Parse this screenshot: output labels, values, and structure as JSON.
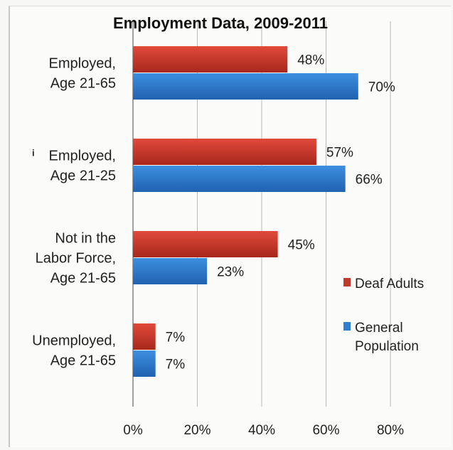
{
  "chart_data": {
    "type": "bar",
    "orientation": "horizontal",
    "title": "Employment Data, 2009-2011",
    "categories": [
      [
        "Employed,",
        "Age 21-65"
      ],
      [
        "Employed,",
        "Age 21-25"
      ],
      [
        "Not in the",
        "Labor Force,",
        "Age 21-65"
      ],
      [
        "Unemployed,",
        "Age 21-65"
      ]
    ],
    "category_marker": [
      "",
      "i",
      "",
      ""
    ],
    "series": [
      {
        "name": "Deaf Adults",
        "values": [
          48,
          57,
          45,
          7
        ],
        "labels": [
          "48%",
          "57%",
          "45%",
          "7%"
        ],
        "color": "#c0392b"
      },
      {
        "name": "General Population",
        "values": [
          70,
          66,
          23,
          7
        ],
        "labels": [
          "70%",
          "66%",
          "23%",
          "7%"
        ],
        "color": "#2f7fd0"
      }
    ],
    "legend_entries": [
      [
        "Deaf Adults"
      ],
      [
        "General",
        "Population"
      ]
    ],
    "xlim": [
      0,
      80
    ],
    "xticks": [
      0,
      20,
      40,
      60,
      80
    ],
    "xtick_labels": [
      "0%",
      "20%",
      "40%",
      "60%",
      "80%"
    ],
    "grid": true,
    "legend_position": "right"
  }
}
